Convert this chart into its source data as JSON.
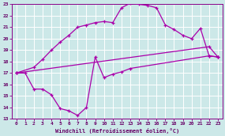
{
  "xlabel": "Windchill (Refroidissement éolien,°C)",
  "bg_color": "#cce8e8",
  "grid_color": "#ffffff",
  "line_color": "#aa00aa",
  "xlim": [
    -0.5,
    23.5
  ],
  "ylim": [
    13,
    23
  ],
  "xticks": [
    0,
    1,
    2,
    3,
    4,
    5,
    6,
    7,
    8,
    9,
    10,
    11,
    12,
    13,
    14,
    15,
    16,
    17,
    18,
    19,
    20,
    21,
    22,
    23
  ],
  "yticks": [
    13,
    14,
    15,
    16,
    17,
    18,
    19,
    20,
    21,
    22,
    23
  ],
  "line1_x": [
    0,
    2,
    3,
    4,
    5,
    6,
    7,
    8,
    9,
    10,
    11,
    12,
    13,
    14,
    15,
    16,
    17,
    18,
    19,
    20,
    21,
    22,
    23
  ],
  "line1_y": [
    17.0,
    17.5,
    18.2,
    19.0,
    19.7,
    20.3,
    21.0,
    21.2,
    21.4,
    21.5,
    21.4,
    22.7,
    23.1,
    23.0,
    22.9,
    22.7,
    21.2,
    20.8,
    20.3,
    20.0,
    20.9,
    18.5,
    18.4
  ],
  "line2_x": [
    0,
    22,
    23
  ],
  "line2_y": [
    17.0,
    19.3,
    18.4
  ],
  "line3_x": [
    0,
    1,
    2,
    3,
    4,
    5,
    6,
    7,
    8,
    9,
    10,
    11,
    12,
    13,
    22,
    23
  ],
  "line3_y": [
    17.0,
    17.0,
    15.6,
    15.6,
    15.1,
    13.9,
    13.7,
    13.3,
    14.0,
    18.4,
    16.6,
    16.9,
    17.1,
    17.4,
    18.5,
    18.4
  ]
}
